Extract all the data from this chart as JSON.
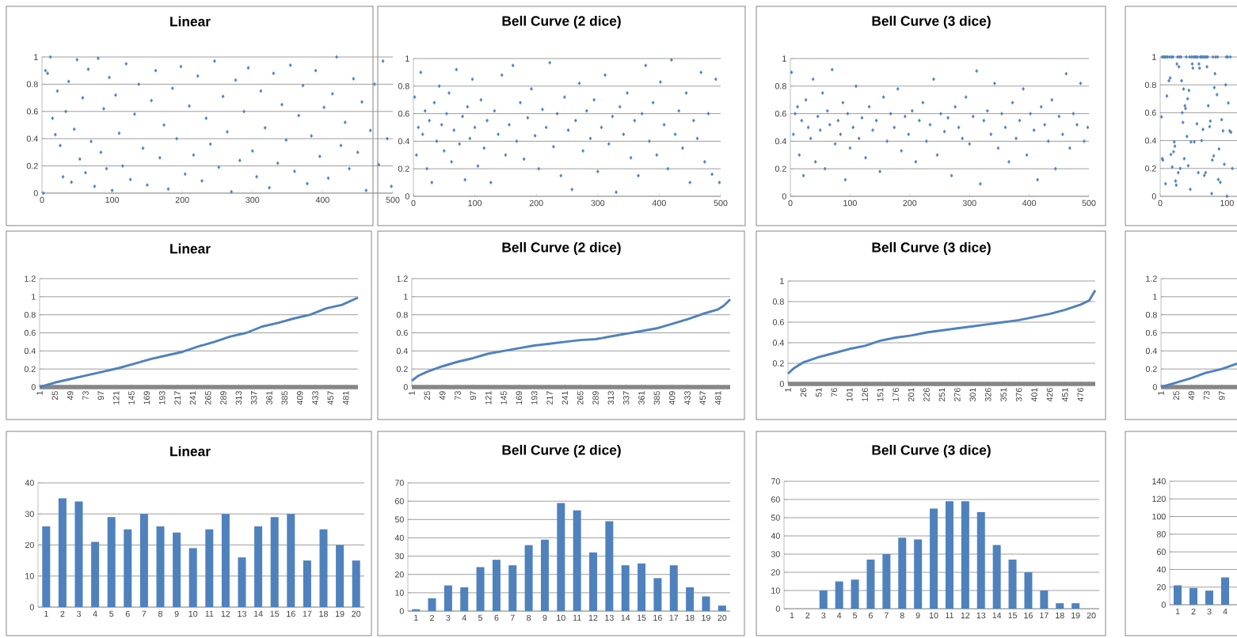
{
  "chart_data": [
    {
      "type": "scatter",
      "title": "Linear",
      "color": "#4f81bd",
      "marker": "diamond",
      "grid": "y",
      "xlim": [
        0,
        500
      ],
      "xticks": [
        0,
        100,
        200,
        300,
        400,
        500
      ],
      "ylim": [
        0,
        1
      ],
      "yticks": [
        0,
        0.2,
        0.4,
        0.6,
        0.8,
        1
      ],
      "x": [
        2,
        5,
        8,
        12,
        15,
        19,
        22,
        26,
        30,
        34,
        38,
        42,
        46,
        50,
        54,
        58,
        62,
        66,
        70,
        75,
        80,
        84,
        88,
        92,
        96,
        100,
        105,
        110,
        115,
        120,
        126,
        132,
        138,
        144,
        150,
        156,
        162,
        168,
        174,
        180,
        186,
        192,
        198,
        204,
        210,
        216,
        222,
        228,
        234,
        240,
        246,
        252,
        258,
        264,
        270,
        276,
        282,
        288,
        294,
        300,
        306,
        312,
        318,
        324,
        330,
        336,
        342,
        348,
        354,
        360,
        366,
        372,
        378,
        384,
        390,
        396,
        402,
        408,
        414,
        420,
        426,
        432,
        438,
        444,
        450,
        456,
        462,
        468,
        474,
        480,
        486,
        492,
        498
      ],
      "values": [
        0,
        0.9,
        0.88,
        1,
        0.55,
        0.43,
        0.75,
        0.35,
        0.12,
        0.6,
        0.82,
        0.08,
        0.47,
        0.98,
        0.25,
        0.7,
        0.15,
        0.91,
        0.38,
        0.05,
        0.99,
        0.3,
        0.62,
        0.18,
        0.85,
        0.02,
        0.72,
        0.44,
        0.2,
        0.95,
        0.1,
        0.58,
        0.8,
        0.33,
        0.06,
        0.68,
        0.9,
        0.26,
        0.5,
        0.03,
        0.77,
        0.4,
        0.93,
        0.14,
        0.64,
        0.28,
        0.86,
        0.09,
        0.55,
        0.36,
        0.97,
        0.19,
        0.71,
        0.45,
        0.01,
        0.83,
        0.24,
        0.6,
        0.92,
        0.31,
        0.12,
        0.75,
        0.48,
        0.04,
        0.88,
        0.22,
        0.65,
        0.39,
        0.94,
        0.16,
        0.57,
        0.79,
        0.07,
        0.42,
        0.9,
        0.27,
        0.63,
        0.11,
        0.73,
        1,
        0.35,
        0.52,
        0.18,
        0.84,
        0.3,
        0.67,
        0.02,
        0.46,
        0.8,
        0.21,
        0.97,
        0.4,
        0.05
      ]
    },
    {
      "type": "scatter",
      "title": "Bell Curve (2 dice)",
      "color": "#4f81bd",
      "marker": "diamond",
      "grid": "y",
      "xlim": [
        0,
        500
      ],
      "xticks": [
        0,
        100,
        200,
        300,
        400,
        500
      ],
      "ylim": [
        0,
        1
      ],
      "yticks": [
        0,
        0.2,
        0.4,
        0.6,
        0.8,
        1
      ],
      "x": [
        2,
        5,
        8,
        12,
        15,
        19,
        22,
        26,
        30,
        34,
        38,
        42,
        46,
        50,
        54,
        58,
        62,
        66,
        70,
        75,
        80,
        84,
        88,
        92,
        96,
        100,
        105,
        110,
        115,
        120,
        126,
        132,
        138,
        144,
        150,
        156,
        162,
        168,
        174,
        180,
        186,
        192,
        198,
        204,
        210,
        216,
        222,
        228,
        234,
        240,
        246,
        252,
        258,
        264,
        270,
        276,
        282,
        288,
        294,
        300,
        306,
        312,
        318,
        324,
        330,
        336,
        342,
        348,
        354,
        360,
        366,
        372,
        378,
        384,
        390,
        396,
        402,
        408,
        414,
        420,
        426,
        432,
        438,
        444,
        450,
        456,
        462,
        468,
        474,
        480,
        486,
        492,
        498
      ],
      "values": [
        0.72,
        0.3,
        0.5,
        0.9,
        0.45,
        0.62,
        0.2,
        0.55,
        0.1,
        0.68,
        0.4,
        0.8,
        0.52,
        0.33,
        0.6,
        0.75,
        0.25,
        0.48,
        0.92,
        0.38,
        0.58,
        0.12,
        0.65,
        0.42,
        0.85,
        0.5,
        0.22,
        0.7,
        0.35,
        0.55,
        0.1,
        0.62,
        0.45,
        0.88,
        0.3,
        0.52,
        0.95,
        0.4,
        0.68,
        0.27,
        0.57,
        0.78,
        0.44,
        0.2,
        0.63,
        0.5,
        0.97,
        0.36,
        0.6,
        0.15,
        0.72,
        0.48,
        0.05,
        0.55,
        0.82,
        0.33,
        0.62,
        0.42,
        0.7,
        0.18,
        0.5,
        0.88,
        0.38,
        0.58,
        0.03,
        0.65,
        0.45,
        0.75,
        0.28,
        0.55,
        0.15,
        0.6,
        0.95,
        0.4,
        0.68,
        0.3,
        0.83,
        0.52,
        0.2,
        0.99,
        0.45,
        0.62,
        0.35,
        0.75,
        0.1,
        0.55,
        0.42,
        0.9,
        0.25,
        0.6,
        0.16,
        0.85,
        0.1
      ]
    },
    {
      "type": "scatter",
      "title": "Bell Curve (3 dice)",
      "color": "#4f81bd",
      "marker": "diamond",
      "grid": "y",
      "xlim": [
        0,
        500
      ],
      "xticks": [
        0,
        100,
        200,
        300,
        400,
        500
      ],
      "ylim": [
        0,
        1
      ],
      "yticks": [
        0,
        0.2,
        0.4,
        0.6,
        0.8,
        1
      ],
      "x": [
        2,
        5,
        8,
        12,
        15,
        19,
        22,
        26,
        30,
        34,
        38,
        42,
        46,
        50,
        54,
        58,
        62,
        66,
        70,
        75,
        80,
        84,
        88,
        92,
        96,
        100,
        105,
        110,
        115,
        120,
        126,
        132,
        138,
        144,
        150,
        156,
        162,
        168,
        174,
        180,
        186,
        192,
        198,
        204,
        210,
        216,
        222,
        228,
        234,
        240,
        246,
        252,
        258,
        264,
        270,
        276,
        282,
        288,
        294,
        300,
        306,
        312,
        318,
        324,
        330,
        336,
        342,
        348,
        354,
        360,
        366,
        372,
        378,
        384,
        390,
        396,
        402,
        408,
        414,
        420,
        426,
        432,
        438,
        444,
        450,
        456,
        462,
        468,
        474,
        480,
        486,
        492,
        498
      ],
      "values": [
        0.9,
        0.45,
        0.6,
        0.65,
        0.3,
        0.55,
        0.15,
        0.7,
        0.5,
        0.42,
        0.85,
        0.25,
        0.58,
        0.48,
        0.75,
        0.2,
        0.62,
        0.52,
        0.92,
        0.38,
        0.55,
        0.45,
        0.68,
        0.12,
        0.6,
        0.35,
        0.5,
        0.8,
        0.42,
        0.57,
        0.28,
        0.65,
        0.48,
        0.55,
        0.18,
        0.72,
        0.4,
        0.6,
        0.5,
        0.78,
        0.33,
        0.58,
        0.45,
        0.62,
        0.25,
        0.55,
        0.68,
        0.4,
        0.52,
        0.85,
        0.3,
        0.6,
        0.47,
        0.57,
        0.15,
        0.65,
        0.5,
        0.42,
        0.72,
        0.38,
        0.58,
        0.91,
        0.09,
        0.55,
        0.62,
        0.45,
        0.82,
        0.35,
        0.6,
        0.5,
        0.25,
        0.68,
        0.42,
        0.55,
        0.78,
        0.3,
        0.6,
        0.48,
        0.12,
        0.65,
        0.52,
        0.4,
        0.7,
        0.2,
        0.58,
        0.45,
        0.89,
        0.35,
        0.6,
        0.52,
        0.82,
        0.4,
        0.5
      ]
    },
    {
      "type": "scatter",
      "color": "#4f81bd",
      "marker": "diamond",
      "grid": "y",
      "xlim": [
        0,
        115
      ],
      "xticks": [
        0,
        100
      ],
      "ylim": [
        0,
        1
      ],
      "yticks": [
        0,
        0.2,
        0.4,
        0.6,
        0.8,
        1
      ],
      "x": [
        2,
        3,
        4,
        8,
        10,
        13,
        15,
        16,
        18,
        20,
        21,
        22,
        23,
        24,
        25,
        27,
        28,
        30,
        32,
        33,
        34,
        35,
        36,
        37,
        38,
        40,
        41,
        42,
        43,
        45,
        46,
        48,
        49,
        51,
        55,
        57,
        58,
        59,
        62,
        64,
        66,
        68,
        70,
        72,
        74,
        75,
        77,
        78,
        80,
        81,
        82,
        85,
        87,
        88,
        90,
        92,
        94,
        96,
        98,
        100,
        102,
        104,
        106,
        108,
        3,
        5,
        7,
        9,
        11,
        14,
        17,
        19,
        26,
        29,
        31,
        39,
        44,
        47,
        50,
        52,
        54,
        56,
        60,
        61,
        63,
        65,
        67,
        69,
        71,
        79,
        83,
        86,
        99,
        101,
        105
      ],
      "values": [
        0.57,
        0.27,
        0.26,
        0.09,
        0.72,
        0.83,
        0.85,
        0.3,
        0.21,
        0.32,
        0.39,
        0.36,
        0.11,
        0.08,
        0.95,
        0.17,
        0.93,
        0.2,
        0.83,
        0.6,
        0.53,
        0.77,
        0.27,
        0.65,
        0.63,
        0.43,
        0.7,
        0.22,
        0.76,
        0.05,
        0.39,
        0.95,
        0.92,
        0.39,
        0.52,
        0.17,
        0.95,
        0.92,
        0.4,
        0.48,
        0.15,
        0.17,
        0.93,
        0.65,
        0.5,
        0.54,
        0.02,
        0.26,
        0.29,
        0.78,
        0.88,
        0.73,
        0.12,
        0.34,
        0.1,
        0.55,
        0.47,
        0.23,
        0.8,
        0,
        0.67,
        0.47,
        0.46,
        0.2,
        1,
        1,
        1,
        1,
        1,
        1,
        1,
        1,
        1,
        1,
        1,
        1,
        1,
        1,
        1,
        1,
        1,
        1,
        1,
        1,
        1,
        1,
        1,
        1,
        1,
        1,
        1,
        1,
        1,
        1,
        1
      ]
    },
    {
      "type": "line",
      "title": "Linear",
      "color": "#4f81bd",
      "grid": "y",
      "xlim": [
        1,
        500
      ],
      "xticks": [
        1,
        25,
        49,
        73,
        97,
        121,
        145,
        169,
        193,
        217,
        241,
        265,
        289,
        313,
        337,
        361,
        385,
        409,
        433,
        457,
        481
      ],
      "ylim": [
        0,
        1.2
      ],
      "yticks": [
        0,
        0.2,
        0.4,
        0.6,
        0.8,
        1,
        1.2
      ],
      "x": [
        1,
        25,
        50,
        75,
        100,
        125,
        150,
        175,
        200,
        225,
        250,
        275,
        300,
        325,
        350,
        375,
        400,
        425,
        450,
        475,
        500
      ],
      "values": [
        0,
        0.05,
        0.09,
        0.13,
        0.17,
        0.21,
        0.26,
        0.31,
        0.35,
        0.39,
        0.45,
        0.5,
        0.56,
        0.6,
        0.67,
        0.71,
        0.76,
        0.8,
        0.87,
        0.91,
        0.99
      ]
    },
    {
      "type": "line",
      "title": "Bell Curve (2 dice)",
      "color": "#4f81bd",
      "grid": "y",
      "xlim": [
        1,
        500
      ],
      "xticks": [
        1,
        25,
        49,
        73,
        97,
        121,
        145,
        169,
        193,
        217,
        241,
        265,
        289,
        313,
        337,
        361,
        385,
        409,
        433,
        457,
        481
      ],
      "ylim": [
        0,
        1.2
      ],
      "yticks": [
        0,
        0.2,
        0.4,
        0.6,
        0.8,
        1,
        1.2
      ],
      "x": [
        1,
        10,
        25,
        49,
        73,
        97,
        121,
        145,
        169,
        193,
        217,
        241,
        265,
        289,
        313,
        337,
        361,
        385,
        409,
        433,
        457,
        481,
        490,
        500
      ],
      "values": [
        0.07,
        0.12,
        0.17,
        0.23,
        0.28,
        0.32,
        0.37,
        0.4,
        0.43,
        0.46,
        0.48,
        0.5,
        0.52,
        0.53,
        0.56,
        0.59,
        0.62,
        0.65,
        0.7,
        0.75,
        0.81,
        0.86,
        0.9,
        0.97
      ]
    },
    {
      "type": "line",
      "title": "Bell Curve (3 dice)",
      "color": "#4f81bd",
      "grid": "y",
      "xlim": [
        1,
        500
      ],
      "xticks": [
        1,
        26,
        51,
        76,
        101,
        126,
        151,
        176,
        201,
        226,
        251,
        276,
        301,
        326,
        351,
        376,
        401,
        426,
        451,
        476
      ],
      "ylim": [
        0,
        1
      ],
      "yticks": [
        0,
        0.2,
        0.4,
        0.6,
        0.8,
        1
      ],
      "x": [
        1,
        10,
        26,
        51,
        76,
        101,
        126,
        151,
        176,
        201,
        226,
        251,
        276,
        301,
        326,
        351,
        376,
        401,
        426,
        451,
        476,
        490,
        500
      ],
      "values": [
        0.1,
        0.15,
        0.21,
        0.26,
        0.3,
        0.34,
        0.37,
        0.42,
        0.45,
        0.47,
        0.5,
        0.52,
        0.54,
        0.56,
        0.58,
        0.6,
        0.62,
        0.65,
        0.68,
        0.72,
        0.77,
        0.81,
        0.91
      ]
    },
    {
      "type": "line",
      "color": "#4f81bd",
      "grid": "y",
      "xlim": [
        1,
        121
      ],
      "xticks": [
        1,
        25,
        49,
        73,
        97
      ],
      "ylim": [
        0,
        1.2
      ],
      "yticks": [
        0,
        0.2,
        0.4,
        0.6,
        0.8,
        1,
        1.2
      ],
      "x": [
        1,
        25,
        49,
        73,
        97,
        121
      ],
      "values": [
        0,
        0.05,
        0.1,
        0.16,
        0.2,
        0.26
      ]
    },
    {
      "type": "bar",
      "title": "Linear",
      "color": "#4f81bd",
      "grid": "y",
      "ylim": [
        0,
        40
      ],
      "yticks": [
        0,
        10,
        20,
        30,
        40
      ],
      "categories": [
        "1",
        "2",
        "3",
        "4",
        "5",
        "6",
        "7",
        "8",
        "9",
        "10",
        "11",
        "12",
        "13",
        "14",
        "15",
        "16",
        "17",
        "18",
        "19",
        "20"
      ],
      "values": [
        26,
        35,
        34,
        21,
        29,
        25,
        30,
        26,
        24,
        19,
        25,
        30,
        16,
        26,
        29,
        30,
        15,
        25,
        20,
        15
      ]
    },
    {
      "type": "bar",
      "title": "Bell Curve (2 dice)",
      "color": "#4f81bd",
      "grid": "y",
      "ylim": [
        0,
        70
      ],
      "yticks": [
        0,
        10,
        20,
        30,
        40,
        50,
        60,
        70
      ],
      "categories": [
        "1",
        "2",
        "3",
        "4",
        "5",
        "6",
        "7",
        "8",
        "9",
        "10",
        "11",
        "12",
        "13",
        "14",
        "15",
        "16",
        "17",
        "18",
        "19",
        "20"
      ],
      "values": [
        1,
        7,
        14,
        13,
        24,
        28,
        25,
        36,
        39,
        59,
        55,
        32,
        49,
        25,
        26,
        18,
        25,
        13,
        8,
        3
      ]
    },
    {
      "type": "bar",
      "title": "Bell Curve (3 dice)",
      "color": "#4f81bd",
      "grid": "y",
      "ylim": [
        0,
        70
      ],
      "yticks": [
        0,
        10,
        20,
        30,
        40,
        50,
        60,
        70
      ],
      "categories": [
        "1",
        "2",
        "3",
        "4",
        "5",
        "6",
        "7",
        "8",
        "9",
        "10",
        "11",
        "12",
        "13",
        "14",
        "15",
        "16",
        "17",
        "18",
        "19",
        "20"
      ],
      "values": [
        0,
        0,
        10,
        15,
        16,
        27,
        30,
        39,
        38,
        55,
        59,
        59,
        53,
        35,
        27,
        20,
        10,
        3,
        3,
        0
      ]
    },
    {
      "type": "bar",
      "color": "#4f81bd",
      "grid": "y",
      "ylim": [
        0,
        140
      ],
      "yticks": [
        0,
        20,
        40,
        60,
        80,
        100,
        120,
        140
      ],
      "categories": [
        "1",
        "2",
        "3",
        "4"
      ],
      "values": [
        22,
        19,
        16,
        31
      ]
    }
  ]
}
